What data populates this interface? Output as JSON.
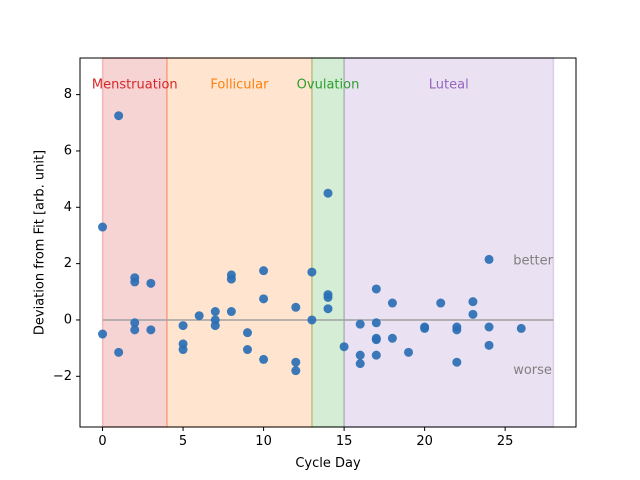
{
  "chart_data": {
    "type": "scatter",
    "title": "",
    "xlabel": "Cycle Day",
    "ylabel": "Deviation from Fit [arb. unit]",
    "xlim": [
      -1.4,
      29.4
    ],
    "ylim": [
      -3.8,
      9.3
    ],
    "x_ticks": [
      0,
      5,
      10,
      15,
      20,
      25
    ],
    "y_ticks": [
      -2,
      0,
      2,
      4,
      6,
      8
    ],
    "x_tick_labels": [
      "0",
      "5",
      "10",
      "15",
      "20",
      "25"
    ],
    "y_tick_labels": [
      "−2",
      "0",
      "2",
      "4",
      "6",
      "8"
    ],
    "grid": false,
    "reference_line": {
      "y": 0,
      "color": "#a0a0a0"
    },
    "phases": [
      {
        "name": "Menstruation",
        "start": 0,
        "end": 4,
        "color": "#d62728"
      },
      {
        "name": "Follicular",
        "start": 4,
        "end": 13,
        "color": "#ff7f0e"
      },
      {
        "name": "Ovulation",
        "start": 13,
        "end": 15,
        "color": "#2ca02c"
      },
      {
        "name": "Luteal",
        "start": 15,
        "end": 28,
        "color": "#9467bd"
      }
    ],
    "annotations": [
      {
        "text": "better",
        "x": 25.5,
        "y": 2.1
      },
      {
        "text": "worse",
        "x": 25.5,
        "y": -1.8
      }
    ],
    "point_color": "#2a6fb5",
    "points": [
      {
        "x": 0,
        "y": 3.3
      },
      {
        "x": 0,
        "y": -0.5
      },
      {
        "x": 1,
        "y": 7.25
      },
      {
        "x": 1,
        "y": -1.15
      },
      {
        "x": 2,
        "y": 1.5
      },
      {
        "x": 2,
        "y": 1.35
      },
      {
        "x": 2,
        "y": -0.1
      },
      {
        "x": 2,
        "y": -0.35
      },
      {
        "x": 3,
        "y": 1.3
      },
      {
        "x": 3,
        "y": -0.35
      },
      {
        "x": 5,
        "y": -0.2
      },
      {
        "x": 5,
        "y": -0.85
      },
      {
        "x": 5,
        "y": -1.05
      },
      {
        "x": 6,
        "y": 0.15
      },
      {
        "x": 7,
        "y": 0.3
      },
      {
        "x": 7,
        "y": 0.0
      },
      {
        "x": 7,
        "y": -0.2
      },
      {
        "x": 8,
        "y": 1.6
      },
      {
        "x": 8,
        "y": 1.45
      },
      {
        "x": 8,
        "y": 0.3
      },
      {
        "x": 9,
        "y": -0.45
      },
      {
        "x": 9,
        "y": -1.05
      },
      {
        "x": 10,
        "y": 1.75
      },
      {
        "x": 10,
        "y": 0.75
      },
      {
        "x": 10,
        "y": -1.4
      },
      {
        "x": 12,
        "y": 0.45
      },
      {
        "x": 12,
        "y": -1.5
      },
      {
        "x": 12,
        "y": -1.8
      },
      {
        "x": 13,
        "y": 1.7
      },
      {
        "x": 13,
        "y": 0.0
      },
      {
        "x": 14,
        "y": 4.5
      },
      {
        "x": 14,
        "y": 0.9
      },
      {
        "x": 14,
        "y": 0.8
      },
      {
        "x": 14,
        "y": 0.4
      },
      {
        "x": 15,
        "y": -0.95
      },
      {
        "x": 16,
        "y": -0.15
      },
      {
        "x": 16,
        "y": -1.25
      },
      {
        "x": 16,
        "y": -1.55
      },
      {
        "x": 17,
        "y": 1.1
      },
      {
        "x": 17,
        "y": -0.1
      },
      {
        "x": 17,
        "y": -0.65
      },
      {
        "x": 17,
        "y": -0.7
      },
      {
        "x": 17,
        "y": -1.25
      },
      {
        "x": 18,
        "y": 0.6
      },
      {
        "x": 18,
        "y": -0.65
      },
      {
        "x": 19,
        "y": -1.15
      },
      {
        "x": 20,
        "y": -0.25
      },
      {
        "x": 20,
        "y": -0.3
      },
      {
        "x": 21,
        "y": 0.6
      },
      {
        "x": 22,
        "y": -0.25
      },
      {
        "x": 22,
        "y": -0.35
      },
      {
        "x": 22,
        "y": -1.5
      },
      {
        "x": 23,
        "y": 0.65
      },
      {
        "x": 23,
        "y": 0.2
      },
      {
        "x": 24,
        "y": 2.15
      },
      {
        "x": 24,
        "y": -0.25
      },
      {
        "x": 24,
        "y": -0.9
      },
      {
        "x": 26,
        "y": -0.3
      }
    ]
  }
}
